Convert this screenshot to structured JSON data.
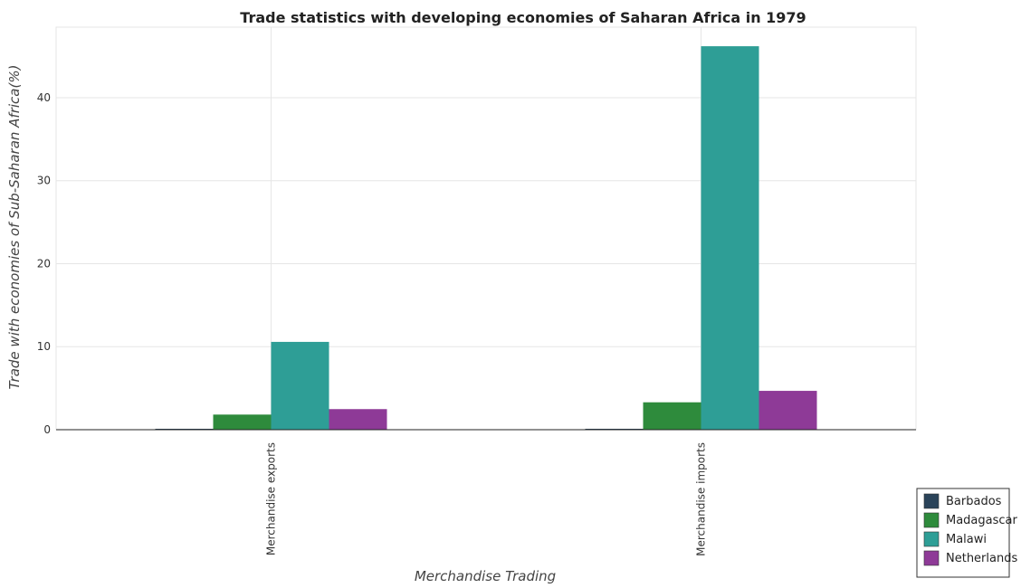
{
  "chart_data": {
    "type": "bar",
    "title": "Trade statistics with developing economies of Saharan Africa in 1979",
    "xlabel": "Merchandise Trading",
    "ylabel": "Trade with economies of Sub-Saharan Africa(%)",
    "categories": [
      "Merchandise exports",
      "Merchandise imports"
    ],
    "series": [
      {
        "name": "Barbados",
        "color": "#2a4359",
        "values": [
          0.02,
          0.05
        ]
      },
      {
        "name": "Madagascar",
        "color": "#2e8b3c",
        "values": [
          1.82,
          3.3
        ]
      },
      {
        "name": "Malawi",
        "color": "#2e9e96",
        "values": [
          10.58,
          46.2
        ]
      },
      {
        "name": "Netherlands",
        "color": "#8e3a97",
        "values": [
          2.48,
          4.68
        ]
      }
    ],
    "ylim": [
      0,
      48.5
    ],
    "yticks": [
      0,
      10,
      20,
      30,
      40
    ],
    "grid": true,
    "legend_position": "bottom-right"
  }
}
